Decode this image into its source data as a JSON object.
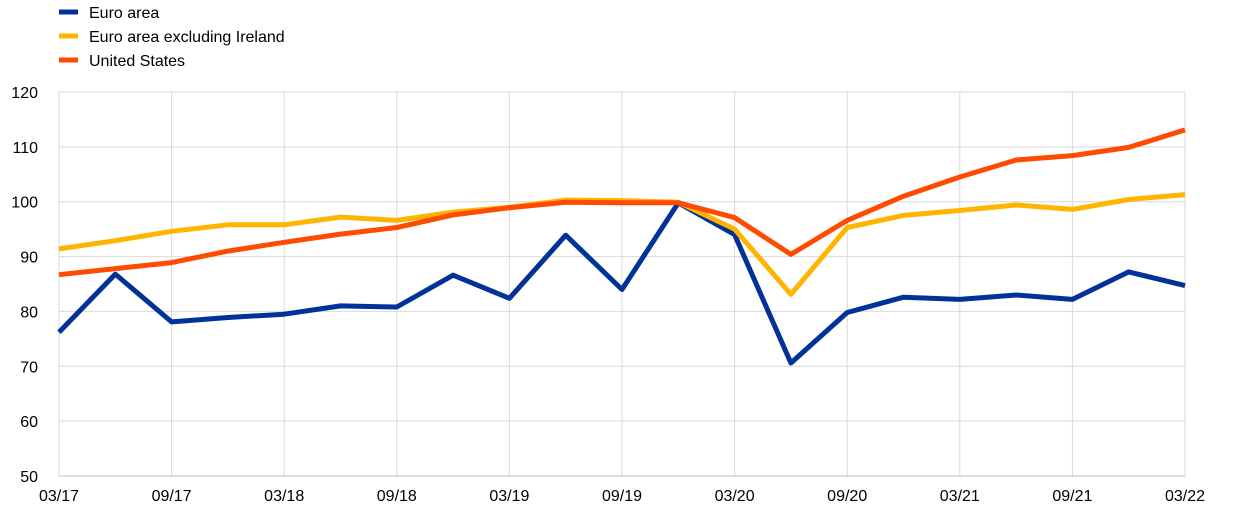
{
  "chart_data": {
    "type": "line",
    "title": "",
    "xlabel": "",
    "ylabel": "",
    "ylim": [
      50,
      120
    ],
    "yticks": [
      50,
      60,
      70,
      80,
      90,
      100,
      110,
      120
    ],
    "grid": "vertical and horizontal",
    "legend_position": "top-left",
    "x": [
      "03/17",
      "06/17",
      "09/17",
      "12/17",
      "03/18",
      "06/18",
      "09/18",
      "12/18",
      "03/19",
      "06/19",
      "09/19",
      "12/19",
      "03/20",
      "06/20",
      "09/20",
      "12/20",
      "03/21",
      "06/21",
      "09/21",
      "12/21",
      "03/22"
    ],
    "xtick_labels": [
      "03/17",
      "09/17",
      "03/18",
      "09/18",
      "03/19",
      "09/19",
      "03/20",
      "09/20",
      "03/21",
      "09/21",
      "03/22"
    ],
    "series": [
      {
        "name": "Euro area",
        "color": "#003299",
        "values": [
          76.2,
          86.8,
          78.1,
          78.9,
          79.5,
          81.0,
          80.8,
          86.6,
          82.4,
          93.9,
          84.0,
          99.8,
          94.0,
          70.6,
          79.8,
          82.6,
          82.2,
          83.0,
          82.2,
          87.2,
          84.7
        ]
      },
      {
        "name": "Euro area excluding Ireland",
        "color": "#FFB400",
        "values": [
          91.4,
          92.9,
          94.6,
          95.8,
          95.8,
          97.2,
          96.6,
          98.1,
          99.0,
          100.3,
          100.2,
          99.9,
          95.0,
          83.1,
          95.3,
          97.5,
          98.4,
          99.4,
          98.6,
          100.4,
          101.3
        ]
      },
      {
        "name": "United States",
        "color": "#FF4B00",
        "values": [
          86.7,
          87.8,
          88.9,
          91.0,
          92.6,
          94.1,
          95.3,
          97.6,
          98.9,
          99.9,
          99.8,
          99.8,
          97.1,
          90.4,
          96.6,
          101.0,
          104.5,
          107.6,
          108.4,
          109.9,
          113.1
        ]
      }
    ]
  }
}
